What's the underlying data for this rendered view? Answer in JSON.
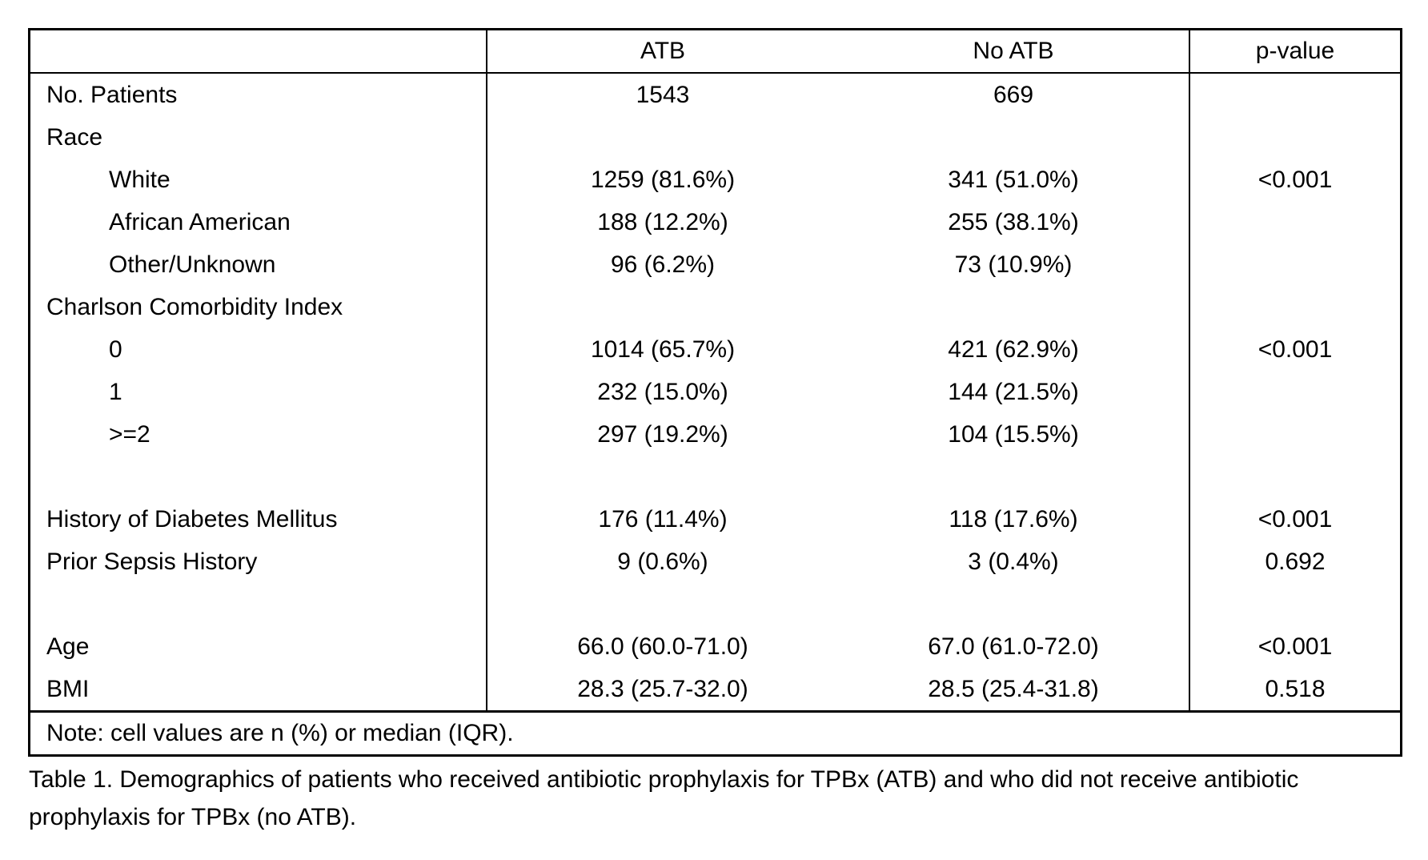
{
  "table": {
    "headers": [
      "",
      "ATB",
      "No ATB",
      "p-value"
    ],
    "rows": [
      {
        "label": "No. Patients",
        "indent": false,
        "atb": "1543",
        "no_atb": "669",
        "p_value": ""
      },
      {
        "label": "Race",
        "indent": false,
        "atb": "",
        "no_atb": "",
        "p_value": ""
      },
      {
        "label": "White",
        "indent": true,
        "atb": "1259 (81.6%)",
        "no_atb": "341 (51.0%)",
        "p_value": "<0.001"
      },
      {
        "label": "African American",
        "indent": true,
        "atb": "188 (12.2%)",
        "no_atb": "255 (38.1%)",
        "p_value": ""
      },
      {
        "label": "Other/Unknown",
        "indent": true,
        "atb": "96 (6.2%)",
        "no_atb": "73 (10.9%)",
        "p_value": ""
      },
      {
        "label": "Charlson Comorbidity Index",
        "indent": false,
        "atb": "",
        "no_atb": "",
        "p_value": ""
      },
      {
        "label": "0",
        "indent": true,
        "atb": "1014 (65.7%)",
        "no_atb": "421 (62.9%)",
        "p_value": "<0.001"
      },
      {
        "label": "1",
        "indent": true,
        "atb": "232 (15.0%)",
        "no_atb": "144 (21.5%)",
        "p_value": ""
      },
      {
        "label": ">=2",
        "indent": true,
        "atb": "297 (19.2%)",
        "no_atb": "104 (15.5%)",
        "p_value": ""
      },
      {
        "label": "",
        "indent": false,
        "atb": "",
        "no_atb": "",
        "p_value": ""
      },
      {
        "label": "History of Diabetes Mellitus",
        "indent": false,
        "atb": "176 (11.4%)",
        "no_atb": "118 (17.6%)",
        "p_value": "<0.001"
      },
      {
        "label": "Prior Sepsis History",
        "indent": false,
        "atb": "9 (0.6%)",
        "no_atb": "3 (0.4%)",
        "p_value": "0.692"
      },
      {
        "label": "",
        "indent": false,
        "atb": "",
        "no_atb": "",
        "p_value": ""
      },
      {
        "label": "Age",
        "indent": false,
        "atb": "66.0 (60.0-71.0)",
        "no_atb": "67.0 (61.0-72.0)",
        "p_value": "<0.001"
      },
      {
        "label": "BMI",
        "indent": false,
        "atb": "28.3 (25.7-32.0)",
        "no_atb": "28.5 (25.4-31.8)",
        "p_value": "0.518"
      }
    ],
    "note": "Note: cell values are n (%) or median (IQR).",
    "caption": "Table 1. Demographics of patients who received antibiotic prophylaxis for TPBx (ATB) and who did not receive antibiotic prophylaxis for TPBx (no ATB)."
  },
  "colors": {
    "text": "#000000",
    "border": "#000000",
    "background": "#ffffff"
  }
}
